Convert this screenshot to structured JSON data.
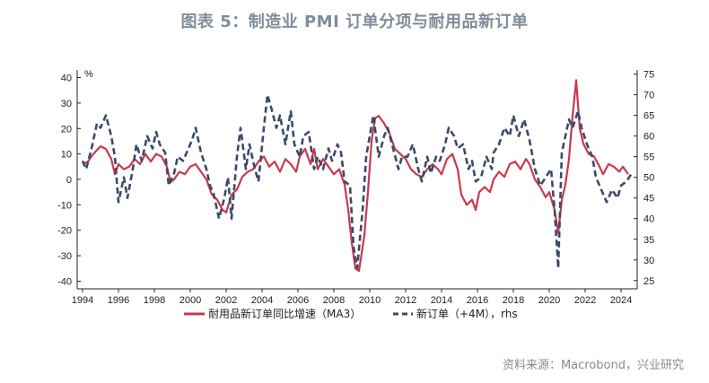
{
  "title": "图表 5：制造业 PMI 订单分项与耐用品新订单",
  "source": "资料来源：Macrobond，兴业研究",
  "colors": {
    "series1": "#c83a4e",
    "series2": "#3b4a6b",
    "axis": "#222222"
  },
  "chart_data": {
    "type": "line",
    "unit_label": "%",
    "x_ticks": [
      "1994",
      "1996",
      "1998",
      "2000",
      "2002",
      "2004",
      "2006",
      "2008",
      "2010",
      "2012",
      "2014",
      "2016",
      "2018",
      "2020",
      "2022",
      "2024"
    ],
    "xlim": [
      1993.7,
      2024.9
    ],
    "y_left": {
      "lim": [
        -43,
        43
      ],
      "ticks": [
        40,
        30,
        20,
        10,
        0,
        -10,
        -20,
        -30,
        -40
      ]
    },
    "y_right": {
      "lim": [
        23,
        76
      ],
      "ticks": [
        75,
        70,
        65,
        60,
        55,
        50,
        45,
        40,
        35,
        30,
        25
      ]
    },
    "series": [
      {
        "name": "耐用品新订单同比增速（MA3）",
        "axis": "left",
        "style": "solid",
        "points": [
          [
            1994.0,
            6
          ],
          [
            1994.3,
            7
          ],
          [
            1994.6,
            10
          ],
          [
            1995.0,
            13
          ],
          [
            1995.3,
            12
          ],
          [
            1995.6,
            8
          ],
          [
            1995.8,
            2
          ],
          [
            1996.0,
            6
          ],
          [
            1996.3,
            4
          ],
          [
            1996.6,
            5
          ],
          [
            1996.9,
            8
          ],
          [
            1997.2,
            6
          ],
          [
            1997.5,
            10
          ],
          [
            1997.8,
            7
          ],
          [
            1998.1,
            10
          ],
          [
            1998.4,
            9
          ],
          [
            1998.7,
            5
          ],
          [
            1998.9,
            -1
          ],
          [
            1999.1,
            0
          ],
          [
            1999.4,
            3
          ],
          [
            1999.7,
            2
          ],
          [
            2000.0,
            5
          ],
          [
            2000.3,
            6
          ],
          [
            2000.6,
            3
          ],
          [
            2000.9,
            0
          ],
          [
            2001.2,
            -6
          ],
          [
            2001.5,
            -8
          ],
          [
            2001.8,
            -12
          ],
          [
            2002.0,
            -13
          ],
          [
            2002.3,
            -6
          ],
          [
            2002.6,
            -4
          ],
          [
            2002.9,
            1
          ],
          [
            2003.2,
            3
          ],
          [
            2003.5,
            4
          ],
          [
            2003.8,
            7
          ],
          [
            2004.1,
            9
          ],
          [
            2004.4,
            5
          ],
          [
            2004.7,
            7
          ],
          [
            2005.0,
            3
          ],
          [
            2005.3,
            8
          ],
          [
            2005.6,
            6
          ],
          [
            2005.9,
            3
          ],
          [
            2006.1,
            9
          ],
          [
            2006.4,
            12
          ],
          [
            2006.7,
            6
          ],
          [
            2006.9,
            12
          ],
          [
            2007.1,
            4
          ],
          [
            2007.4,
            8
          ],
          [
            2007.7,
            5
          ],
          [
            2008.0,
            2
          ],
          [
            2008.3,
            4
          ],
          [
            2008.6,
            -2
          ],
          [
            2008.8,
            -12
          ],
          [
            2009.0,
            -25
          ],
          [
            2009.2,
            -35
          ],
          [
            2009.4,
            -36
          ],
          [
            2009.7,
            -22
          ],
          [
            2009.9,
            -5
          ],
          [
            2010.1,
            15
          ],
          [
            2010.3,
            24
          ],
          [
            2010.5,
            25
          ],
          [
            2010.8,
            22
          ],
          [
            2011.1,
            18
          ],
          [
            2011.4,
            12
          ],
          [
            2011.7,
            10
          ],
          [
            2012.0,
            8
          ],
          [
            2012.3,
            4
          ],
          [
            2012.6,
            2
          ],
          [
            2012.9,
            1
          ],
          [
            2013.2,
            4
          ],
          [
            2013.5,
            6
          ],
          [
            2013.8,
            4
          ],
          [
            2014.0,
            2
          ],
          [
            2014.3,
            8
          ],
          [
            2014.6,
            10
          ],
          [
            2014.9,
            4
          ],
          [
            2015.1,
            -6
          ],
          [
            2015.4,
            -10
          ],
          [
            2015.7,
            -8
          ],
          [
            2015.9,
            -12
          ],
          [
            2016.1,
            -5
          ],
          [
            2016.4,
            -3
          ],
          [
            2016.7,
            -5
          ],
          [
            2016.9,
            0
          ],
          [
            2017.2,
            3
          ],
          [
            2017.5,
            1
          ],
          [
            2017.8,
            6
          ],
          [
            2018.1,
            7
          ],
          [
            2018.4,
            4
          ],
          [
            2018.7,
            8
          ],
          [
            2018.9,
            6
          ],
          [
            2019.2,
            0
          ],
          [
            2019.5,
            -3
          ],
          [
            2019.8,
            -7
          ],
          [
            2020.0,
            -5
          ],
          [
            2020.3,
            -12
          ],
          [
            2020.5,
            -21
          ],
          [
            2020.7,
            -8
          ],
          [
            2020.9,
            -2
          ],
          [
            2021.1,
            8
          ],
          [
            2021.3,
            25
          ],
          [
            2021.5,
            39
          ],
          [
            2021.7,
            20
          ],
          [
            2021.9,
            14
          ],
          [
            2022.2,
            10
          ],
          [
            2022.5,
            9
          ],
          [
            2022.8,
            5
          ],
          [
            2023.0,
            2
          ],
          [
            2023.3,
            6
          ],
          [
            2023.6,
            5
          ],
          [
            2023.9,
            3
          ],
          [
            2024.1,
            5
          ],
          [
            2024.4,
            2
          ]
        ]
      },
      {
        "name": "新订单（+4M），rhs",
        "axis": "right",
        "style": "dashed",
        "points": [
          [
            1994.0,
            54
          ],
          [
            1994.2,
            52
          ],
          [
            1994.5,
            57
          ],
          [
            1994.8,
            63
          ],
          [
            1995.0,
            62
          ],
          [
            1995.3,
            65
          ],
          [
            1995.6,
            60
          ],
          [
            1995.8,
            55
          ],
          [
            1996.0,
            44
          ],
          [
            1996.3,
            50
          ],
          [
            1996.5,
            45
          ],
          [
            1996.8,
            52
          ],
          [
            1997.0,
            58
          ],
          [
            1997.3,
            54
          ],
          [
            1997.6,
            60
          ],
          [
            1997.9,
            57
          ],
          [
            1998.1,
            61
          ],
          [
            1998.3,
            58
          ],
          [
            1998.6,
            56
          ],
          [
            1998.8,
            48
          ],
          [
            1999.1,
            51
          ],
          [
            1999.3,
            55
          ],
          [
            1999.6,
            54
          ],
          [
            1999.9,
            57
          ],
          [
            2000.1,
            59
          ],
          [
            2000.3,
            62
          ],
          [
            2000.6,
            56
          ],
          [
            2000.9,
            52
          ],
          [
            2001.1,
            48
          ],
          [
            2001.3,
            46
          ],
          [
            2001.6,
            40
          ],
          [
            2001.9,
            45
          ],
          [
            2002.1,
            50
          ],
          [
            2002.3,
            40
          ],
          [
            2002.6,
            55
          ],
          [
            2002.8,
            62
          ],
          [
            2003.1,
            52
          ],
          [
            2003.3,
            58
          ],
          [
            2003.6,
            52
          ],
          [
            2003.8,
            49
          ],
          [
            2004.1,
            62
          ],
          [
            2004.3,
            70
          ],
          [
            2004.5,
            67
          ],
          [
            2004.8,
            62
          ],
          [
            2005.0,
            65
          ],
          [
            2005.3,
            58
          ],
          [
            2005.6,
            66
          ],
          [
            2005.8,
            58
          ],
          [
            2006.1,
            55
          ],
          [
            2006.3,
            60
          ],
          [
            2006.6,
            61
          ],
          [
            2006.9,
            52
          ],
          [
            2007.1,
            55
          ],
          [
            2007.4,
            52
          ],
          [
            2007.7,
            57
          ],
          [
            2007.9,
            54
          ],
          [
            2008.2,
            58
          ],
          [
            2008.4,
            56
          ],
          [
            2008.6,
            49
          ],
          [
            2008.9,
            48
          ],
          [
            2009.1,
            33
          ],
          [
            2009.3,
            28
          ],
          [
            2009.6,
            42
          ],
          [
            2009.8,
            55
          ],
          [
            2010.0,
            60
          ],
          [
            2010.2,
            65
          ],
          [
            2010.5,
            55
          ],
          [
            2010.8,
            60
          ],
          [
            2011.0,
            62
          ],
          [
            2011.3,
            57
          ],
          [
            2011.6,
            52
          ],
          [
            2011.8,
            55
          ],
          [
            2012.1,
            55
          ],
          [
            2012.4,
            58
          ],
          [
            2012.7,
            52
          ],
          [
            2012.9,
            49
          ],
          [
            2013.2,
            55
          ],
          [
            2013.4,
            51
          ],
          [
            2013.7,
            55
          ],
          [
            2013.9,
            54
          ],
          [
            2014.2,
            58
          ],
          [
            2014.4,
            62
          ],
          [
            2014.7,
            60
          ],
          [
            2014.9,
            57
          ],
          [
            2015.2,
            58
          ],
          [
            2015.5,
            52
          ],
          [
            2015.7,
            54
          ],
          [
            2015.9,
            49
          ],
          [
            2016.2,
            50
          ],
          [
            2016.5,
            55
          ],
          [
            2016.8,
            52
          ],
          [
            2016.9,
            56
          ],
          [
            2017.2,
            58
          ],
          [
            2017.5,
            62
          ],
          [
            2017.8,
            60
          ],
          [
            2018.0,
            65
          ],
          [
            2018.3,
            60
          ],
          [
            2018.6,
            64
          ],
          [
            2018.9,
            59
          ],
          [
            2019.2,
            52
          ],
          [
            2019.5,
            48
          ],
          [
            2019.8,
            50
          ],
          [
            2020.1,
            52
          ],
          [
            2020.3,
            42
          ],
          [
            2020.5,
            28
          ],
          [
            2020.7,
            56
          ],
          [
            2020.9,
            60
          ],
          [
            2021.1,
            64
          ],
          [
            2021.3,
            62
          ],
          [
            2021.6,
            66
          ],
          [
            2021.8,
            62
          ],
          [
            2022.1,
            58
          ],
          [
            2022.4,
            55
          ],
          [
            2022.6,
            50
          ],
          [
            2022.9,
            47
          ],
          [
            2023.2,
            44
          ],
          [
            2023.5,
            47
          ],
          [
            2023.8,
            45
          ],
          [
            2024.0,
            48
          ],
          [
            2024.3,
            49
          ],
          [
            2024.6,
            51
          ]
        ]
      }
    ]
  }
}
